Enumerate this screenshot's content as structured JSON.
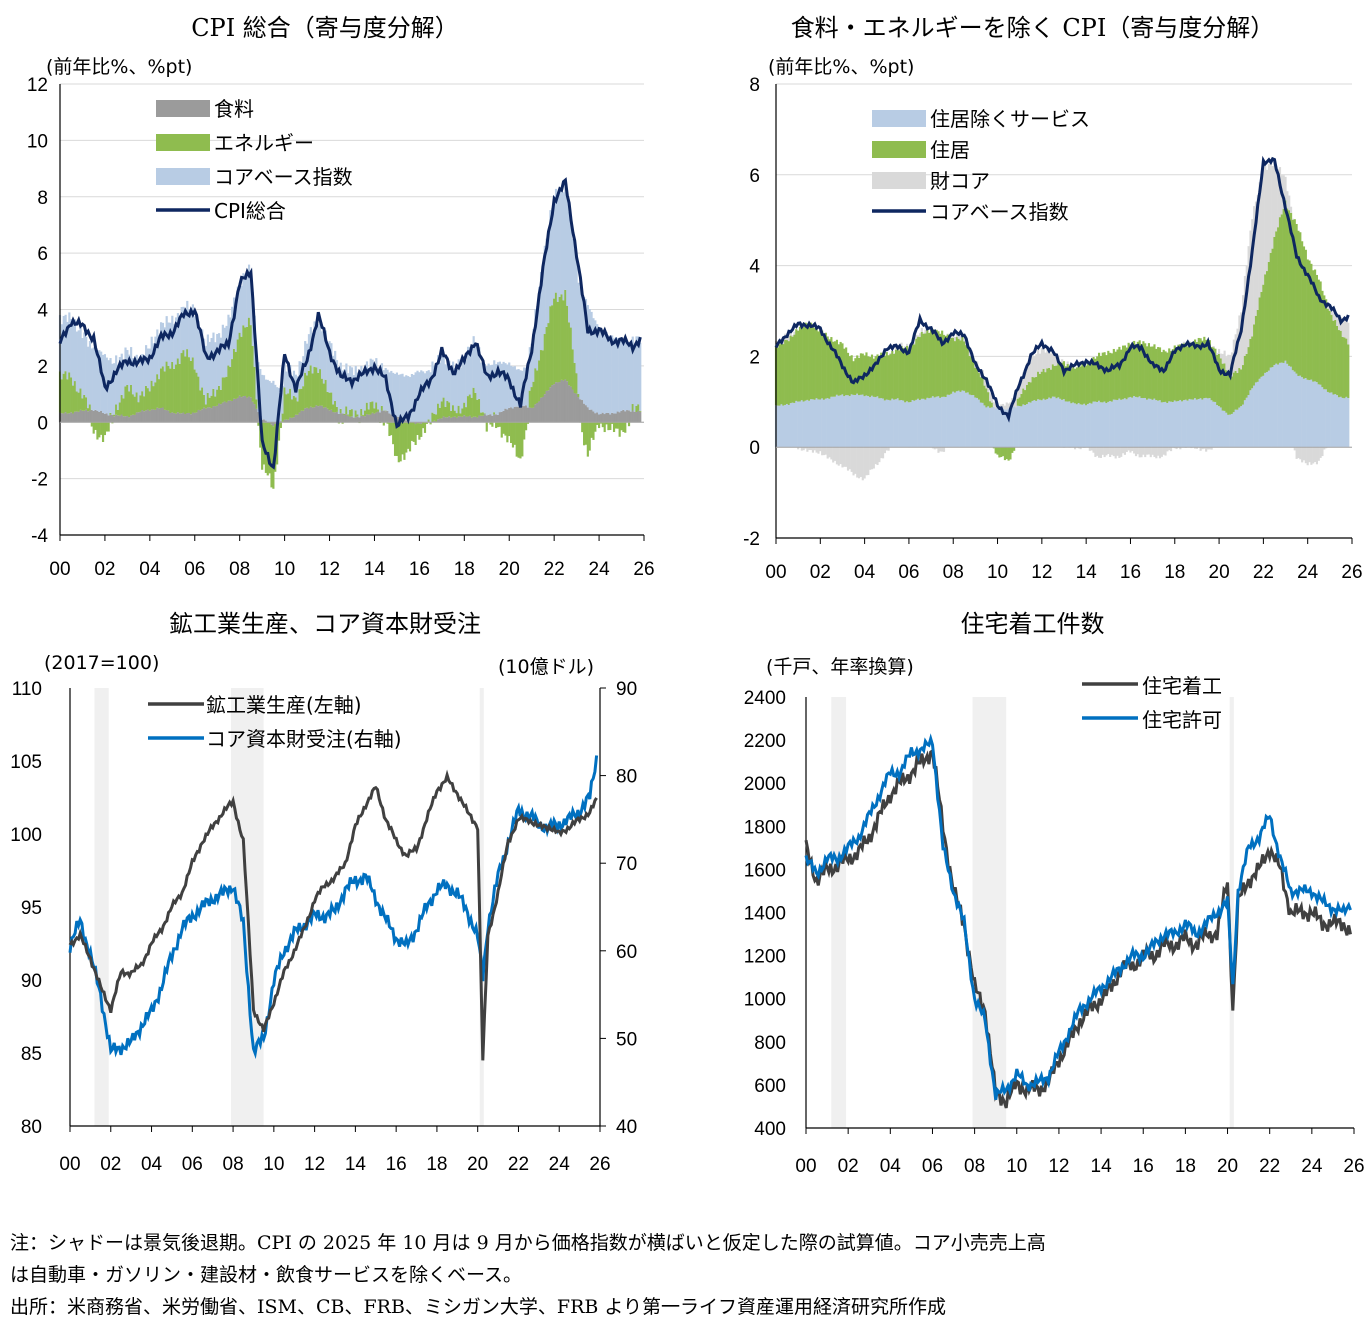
{
  "chart_data": [
    {
      "type": "area",
      "title": "CPI 総合（寄与度分解）",
      "unit_label": "(前年比%、%pt)",
      "x": [
        "00",
        "02",
        "04",
        "06",
        "08",
        "10",
        "12",
        "14",
        "16",
        "18",
        "20",
        "22",
        "24",
        "26"
      ],
      "ylim": [
        -4,
        12
      ],
      "yticks": [
        "12",
        "10",
        "8",
        "6",
        "4",
        "2",
        "0",
        "-2",
        "-4"
      ],
      "legend": [
        "食料",
        "エネルギー",
        "コアベース指数",
        "CPI総合"
      ],
      "colors": {
        "food": "#9b9b9b",
        "energy": "#8fbc4f",
        "core": "#b8cce4",
        "line": "#0e2760"
      },
      "series": {
        "years": [
          2000,
          2000.5,
          2001,
          2001.5,
          2002,
          2002.5,
          2003,
          2003.5,
          2004,
          2004.5,
          2005,
          2005.5,
          2006,
          2006.5,
          2007,
          2007.5,
          2008,
          2008.5,
          2009,
          2009.5,
          2010,
          2010.5,
          2011,
          2011.5,
          2012,
          2012.5,
          2013,
          2013.5,
          2014,
          2014.5,
          2015,
          2015.5,
          2016,
          2016.5,
          2017,
          2017.5,
          2018,
          2018.5,
          2019,
          2019.5,
          2020,
          2020.5,
          2021,
          2021.5,
          2022,
          2022.5,
          2023,
          2023.5,
          2024,
          2024.5,
          2025,
          2025.5,
          2025.9
        ],
        "cpi": [
          2.8,
          3.6,
          3.4,
          3.0,
          1.2,
          1.8,
          2.2,
          2.1,
          2.3,
          3.0,
          3.2,
          3.8,
          4.0,
          2.3,
          2.5,
          2.8,
          4.9,
          5.4,
          -0.8,
          -1.6,
          2.4,
          1.2,
          2.2,
          3.8,
          2.5,
          1.6,
          1.5,
          1.7,
          2.0,
          1.5,
          -0.1,
          0.2,
          1.0,
          1.5,
          2.5,
          1.8,
          2.2,
          2.9,
          1.6,
          1.8,
          1.5,
          0.6,
          2.6,
          5.4,
          7.9,
          8.5,
          6.0,
          3.2,
          3.3,
          2.9,
          2.9,
          2.7,
          3.0
        ],
        "food": [
          0.3,
          0.35,
          0.4,
          0.45,
          0.3,
          0.25,
          0.2,
          0.35,
          0.45,
          0.5,
          0.35,
          0.3,
          0.35,
          0.5,
          0.6,
          0.75,
          0.9,
          0.9,
          0.1,
          -0.1,
          0.05,
          0.25,
          0.5,
          0.6,
          0.45,
          0.3,
          0.2,
          0.2,
          0.35,
          0.4,
          0.2,
          0.05,
          -0.05,
          0.0,
          0.15,
          0.2,
          0.2,
          0.2,
          0.25,
          0.3,
          0.5,
          0.6,
          0.5,
          0.9,
          1.4,
          1.5,
          1.0,
          0.5,
          0.3,
          0.3,
          0.4,
          0.4,
          0.4
        ],
        "energy": [
          1.4,
          1.2,
          0.6,
          -0.3,
          -0.6,
          0.3,
          1.0,
          0.6,
          0.7,
          1.4,
          1.6,
          2.2,
          1.7,
          0.2,
          0.6,
          1.0,
          2.3,
          2.6,
          -1.5,
          -2.3,
          1.0,
          0.6,
          1.2,
          1.4,
          0.5,
          0.1,
          0.1,
          0.2,
          0.3,
          0.0,
          -1.3,
          -1.1,
          -0.4,
          0.0,
          0.7,
          0.2,
          0.4,
          0.9,
          -0.2,
          -0.1,
          -0.7,
          -1.3,
          0.7,
          1.9,
          3.0,
          3.1,
          0.6,
          -1.2,
          0.0,
          -0.3,
          -0.3,
          0.0,
          0.3
        ],
        "core": [
          2.0,
          2.1,
          2.2,
          2.2,
          2.1,
          1.7,
          1.3,
          1.3,
          1.5,
          1.6,
          1.6,
          1.6,
          1.9,
          2.1,
          1.9,
          1.8,
          1.8,
          1.9,
          1.6,
          1.4,
          0.9,
          0.8,
          1.2,
          1.7,
          1.8,
          1.6,
          1.5,
          1.5,
          1.5,
          1.5,
          1.5,
          1.6,
          1.8,
          1.8,
          1.6,
          1.5,
          1.7,
          1.8,
          1.8,
          1.8,
          1.6,
          1.2,
          1.6,
          3.0,
          3.6,
          3.9,
          4.0,
          3.7,
          3.0,
          2.8,
          2.5,
          2.4,
          2.4
        ]
      }
    },
    {
      "type": "area",
      "title": "食料・エネルギーを除く CPI（寄与度分解）",
      "unit_label": "(前年比%、%pt)",
      "x": [
        "00",
        "02",
        "04",
        "06",
        "08",
        "10",
        "12",
        "14",
        "16",
        "18",
        "20",
        "22",
        "24",
        "26"
      ],
      "ylim": [
        -2,
        8
      ],
      "yticks": [
        "8",
        "6",
        "4",
        "2",
        "0",
        "-2"
      ],
      "legend": [
        "住居除くサービス",
        "住居",
        "財コア",
        "コアベース指数"
      ],
      "colors": {
        "services": "#b8cce4",
        "shelter": "#8fbc4f",
        "goods": "#d9d9d9",
        "line": "#0e2760"
      },
      "series": {
        "years": [
          2000,
          2000.5,
          2001,
          2001.5,
          2002,
          2002.5,
          2003,
          2003.5,
          2004,
          2004.5,
          2005,
          2005.5,
          2006,
          2006.5,
          2007,
          2007.5,
          2008,
          2008.5,
          2009,
          2009.5,
          2010,
          2010.5,
          2011,
          2011.5,
          2012,
          2012.5,
          2013,
          2013.5,
          2014,
          2014.5,
          2015,
          2015.5,
          2016,
          2016.5,
          2017,
          2017.5,
          2018,
          2018.5,
          2019,
          2019.5,
          2020,
          2020.5,
          2021,
          2021.5,
          2022,
          2022.5,
          2023,
          2023.5,
          2024,
          2024.5,
          2025,
          2025.5,
          2025.9
        ],
        "core": [
          2.2,
          2.5,
          2.7,
          2.7,
          2.6,
          2.2,
          1.8,
          1.4,
          1.6,
          1.8,
          2.2,
          2.2,
          2.1,
          2.8,
          2.6,
          2.3,
          2.5,
          2.5,
          1.8,
          1.5,
          0.9,
          0.7,
          1.4,
          2.0,
          2.3,
          2.1,
          1.7,
          1.8,
          1.9,
          1.8,
          1.7,
          1.8,
          2.2,
          2.2,
          1.8,
          1.7,
          2.1,
          2.3,
          2.2,
          2.3,
          1.7,
          1.6,
          2.6,
          4.3,
          6.3,
          6.3,
          5.3,
          4.2,
          3.8,
          3.3,
          3.1,
          2.8,
          2.9
        ],
        "services": [
          0.9,
          0.95,
          1.0,
          1.05,
          1.05,
          1.1,
          1.15,
          1.15,
          1.15,
          1.1,
          1.05,
          1.05,
          1.0,
          1.05,
          1.1,
          1.1,
          1.2,
          1.25,
          1.1,
          0.9,
          0.85,
          0.85,
          0.9,
          1.0,
          1.05,
          1.1,
          1.05,
          0.95,
          0.95,
          1.0,
          1.0,
          1.05,
          1.1,
          1.1,
          1.05,
          1.0,
          1.0,
          1.05,
          1.05,
          1.1,
          0.9,
          0.7,
          0.9,
          1.3,
          1.6,
          1.8,
          1.9,
          1.6,
          1.5,
          1.4,
          1.2,
          1.1,
          1.1
        ],
        "shelter": [
          1.3,
          1.4,
          1.6,
          1.7,
          1.5,
          1.3,
          1.1,
          0.8,
          0.9,
          0.9,
          1.0,
          1.1,
          1.2,
          1.4,
          1.5,
          1.4,
          1.2,
          1.1,
          0.7,
          0.4,
          -0.2,
          -0.3,
          0.2,
          0.5,
          0.6,
          0.7,
          0.8,
          0.8,
          0.9,
          1.0,
          1.1,
          1.1,
          1.2,
          1.2,
          1.2,
          1.1,
          1.2,
          1.2,
          1.3,
          1.3,
          1.1,
          0.9,
          0.8,
          1.2,
          2.0,
          2.8,
          3.5,
          3.3,
          2.7,
          2.3,
          1.8,
          1.4,
          1.2
        ],
        "goods": [
          0.1,
          0.1,
          0.0,
          -0.1,
          -0.1,
          -0.3,
          -0.4,
          -0.6,
          -0.7,
          -0.4,
          -0.1,
          0.1,
          0.0,
          0.1,
          0.0,
          -0.1,
          0.1,
          0.1,
          0.1,
          0.2,
          0.1,
          0.1,
          0.3,
          0.5,
          0.5,
          0.3,
          0.0,
          0.0,
          0.0,
          -0.2,
          -0.2,
          -0.2,
          -0.1,
          -0.2,
          -0.2,
          -0.2,
          0.0,
          0.0,
          0.0,
          -0.1,
          0.1,
          0.4,
          1.3,
          2.6,
          2.5,
          1.7,
          0.5,
          -0.2,
          -0.4,
          -0.3,
          0.1,
          0.3,
          0.5
        ]
      }
    },
    {
      "type": "line",
      "title": "鉱工業生産、コア資本財受注",
      "unit_label_left": "(2017=100)",
      "unit_label_right": "(10億ドル)",
      "x": [
        "00",
        "02",
        "04",
        "06",
        "08",
        "10",
        "12",
        "14",
        "16",
        "18",
        "20",
        "22",
        "24",
        "26"
      ],
      "ylim": [
        80,
        110
      ],
      "y2lim": [
        40,
        90
      ],
      "yticks": [
        "110",
        "105",
        "100",
        "95",
        "90",
        "85",
        "80"
      ],
      "y2ticks": [
        "90",
        "80",
        "70",
        "60",
        "50",
        "40"
      ],
      "recessions": [
        [
          2001.2,
          2001.9
        ],
        [
          2007.9,
          2009.5
        ],
        [
          2020.1,
          2020.3
        ]
      ],
      "legend": [
        "鉱工業生産(左軸)",
        "コア資本財受注(右軸)"
      ],
      "colors": {
        "ip": "#404040",
        "orders": "#0070c0",
        "shade": "#f0f0f0"
      },
      "series": {
        "years": [
          2000,
          2000.5,
          2001,
          2001.5,
          2002,
          2002.5,
          2003,
          2003.5,
          2004,
          2004.5,
          2005,
          2005.5,
          2006,
          2006.5,
          2007,
          2007.5,
          2008,
          2008.5,
          2009,
          2009.5,
          2010,
          2010.5,
          2011,
          2011.5,
          2012,
          2012.5,
          2013,
          2013.5,
          2014,
          2014.5,
          2015,
          2015.5,
          2016,
          2016.5,
          2017,
          2017.5,
          2018,
          2018.5,
          2019,
          2019.5,
          2020,
          2020.25,
          2020.5,
          2021,
          2021.5,
          2022,
          2022.5,
          2023,
          2023.5,
          2024,
          2024.5,
          2025,
          2025.5,
          2025.9
        ],
        "ip": [
          92.5,
          93.0,
          91.5,
          89.5,
          88.0,
          90.5,
          90.5,
          91.0,
          92.5,
          93.5,
          95.0,
          96.0,
          98.0,
          99.5,
          100.5,
          101.5,
          102.2,
          99.5,
          88.0,
          86.5,
          88.5,
          90.5,
          92.0,
          93.5,
          95.5,
          96.5,
          97.0,
          98.0,
          100.5,
          102.0,
          103.2,
          101.0,
          99.5,
          98.5,
          99.0,
          101.0,
          103.0,
          103.8,
          102.8,
          101.5,
          100.5,
          84.5,
          93.0,
          96.0,
          99.5,
          101.0,
          101.0,
          100.5,
          100.5,
          100.0,
          100.5,
          101.0,
          101.5,
          102.5
        ],
        "orders": [
          60.5,
          63.5,
          59.5,
          55.0,
          48.5,
          49.0,
          49.5,
          51.5,
          53.0,
          56.0,
          59.5,
          62.5,
          64.0,
          65.0,
          66.0,
          66.5,
          67.5,
          63.0,
          48.5,
          50.0,
          56.5,
          60.0,
          62.0,
          63.0,
          64.0,
          64.0,
          64.5,
          67.0,
          68.0,
          68.5,
          66.0,
          63.5,
          61.5,
          60.5,
          62.5,
          65.0,
          67.0,
          67.5,
          66.5,
          64.5,
          61.5,
          57.0,
          63.0,
          68.5,
          72.5,
          76.0,
          75.5,
          74.5,
          74.0,
          74.5,
          75.0,
          76.0,
          77.5,
          83.0
        ]
      }
    },
    {
      "type": "line",
      "title": "住宅着工件数",
      "unit_label": "(千戸、年率換算)",
      "x": [
        "00",
        "02",
        "04",
        "06",
        "08",
        "10",
        "12",
        "14",
        "16",
        "18",
        "20",
        "22",
        "24",
        "26"
      ],
      "ylim": [
        400,
        2400
      ],
      "yticks": [
        "2400",
        "2200",
        "2000",
        "1800",
        "1600",
        "1400",
        "1200",
        "1000",
        "800",
        "600",
        "400"
      ],
      "recessions": [
        [
          2001.2,
          2001.9
        ],
        [
          2007.9,
          2009.5
        ],
        [
          2020.1,
          2020.3
        ]
      ],
      "legend": [
        "住宅着工",
        "住宅許可"
      ],
      "colors": {
        "starts": "#404040",
        "permits": "#0070c0",
        "shade": "#f0f0f0"
      },
      "series": {
        "years": [
          2000,
          2000.5,
          2001,
          2001.5,
          2002,
          2002.5,
          2003,
          2003.5,
          2004,
          2004.5,
          2005,
          2005.5,
          2006,
          2006.5,
          2007,
          2007.5,
          2008,
          2008.5,
          2009,
          2009.5,
          2010,
          2010.5,
          2011,
          2011.5,
          2012,
          2012.5,
          2013,
          2013.5,
          2014,
          2014.5,
          2015,
          2015.5,
          2016,
          2016.5,
          2017,
          2017.5,
          2018,
          2018.5,
          2019,
          2019.5,
          2020,
          2020.25,
          2020.5,
          2021,
          2021.5,
          2022,
          2022.5,
          2023,
          2023.5,
          2024,
          2024.5,
          2025,
          2025.5,
          2025.9
        ],
        "starts": [
          1700,
          1550,
          1600,
          1620,
          1650,
          1680,
          1750,
          1850,
          1950,
          2000,
          2050,
          2100,
          2150,
          1800,
          1500,
          1350,
          1050,
          950,
          550,
          530,
          600,
          580,
          580,
          610,
          720,
          800,
          900,
          950,
          1000,
          1050,
          1150,
          1150,
          1200,
          1200,
          1250,
          1250,
          1280,
          1250,
          1300,
          1300,
          1550,
          950,
          1450,
          1550,
          1600,
          1700,
          1600,
          1400,
          1400,
          1400,
          1350,
          1350,
          1350,
          1300
        ],
        "permits": [
          1650,
          1580,
          1650,
          1650,
          1700,
          1750,
          1850,
          1950,
          2050,
          2050,
          2150,
          2150,
          2200,
          1700,
          1500,
          1350,
          1000,
          900,
          550,
          580,
          650,
          600,
          610,
          640,
          750,
          850,
          950,
          1000,
          1050,
          1100,
          1150,
          1200,
          1200,
          1250,
          1300,
          1300,
          1350,
          1300,
          1350,
          1400,
          1450,
          1050,
          1500,
          1700,
          1750,
          1850,
          1650,
          1500,
          1500,
          1500,
          1450,
          1420,
          1400,
          1450
        ]
      }
    }
  ],
  "notes": [
    "注：シャドーは景気後退期。CPI の 2025 年 10 月は 9 月から価格指数が横ばいと仮定した際の試算値。コア小売売上高",
    "は自動車・ガソリン・建設材・飲食サービスを除くベース。",
    "出所：米商務省、米労働省、ISM、CB、FRB、ミシガン大学、FRB より第一ライフ資産運用経済研究所作成"
  ]
}
